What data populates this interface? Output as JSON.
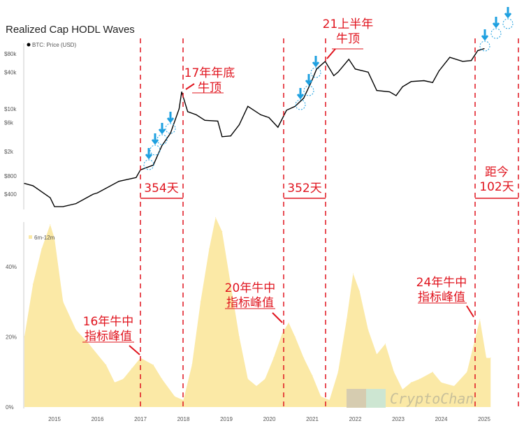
{
  "title": "Realized Cap HODL Waves",
  "chart_data": [
    {
      "type": "line",
      "title": "BTC: Price (USD)",
      "legend": "BTC: Price (USD)",
      "yscale": "log",
      "yticks": [
        "$80k",
        "$40k",
        "$10k",
        "$6k",
        "$2k",
        "$800",
        "$400"
      ],
      "ytick_values": [
        80000,
        40000,
        10000,
        6000,
        2000,
        800,
        400
      ],
      "x": [
        2014.3,
        2014.5,
        2014.9,
        2015.0,
        2015.2,
        2015.5,
        2015.9,
        2016.0,
        2016.5,
        2016.9,
        2017.0,
        2017.3,
        2017.5,
        2017.7,
        2017.9,
        2017.96,
        2018.1,
        2018.3,
        2018.5,
        2018.8,
        2018.9,
        2019.1,
        2019.3,
        2019.5,
        2019.8,
        2019.99,
        2020.2,
        2020.4,
        2020.6,
        2020.8,
        2020.99,
        2021.1,
        2021.3,
        2021.5,
        2021.6,
        2021.85,
        2022.0,
        2022.3,
        2022.5,
        2022.8,
        2022.95,
        2023.1,
        2023.3,
        2023.6,
        2023.8,
        2023.95,
        2024.2,
        2024.5,
        2024.7,
        2024.85,
        2025.0
      ],
      "values": [
        600,
        550,
        350,
        250,
        250,
        280,
        400,
        420,
        650,
        750,
        1000,
        1200,
        2500,
        4000,
        10000,
        19000,
        9000,
        8000,
        6500,
        6300,
        3500,
        3600,
        5500,
        11000,
        8000,
        7200,
        5000,
        9500,
        11000,
        15000,
        29000,
        45000,
        60000,
        35000,
        40000,
        65000,
        45000,
        40000,
        20000,
        19000,
        16500,
        23000,
        28000,
        29000,
        27000,
        42000,
        70000,
        60000,
        62000,
        90000,
        97000
      ]
    },
    {
      "type": "area",
      "legend": "6m-12m",
      "ylabel": "%",
      "yticks": [
        "40%",
        "20%",
        "0%"
      ],
      "ytick_values": [
        40,
        20,
        0
      ],
      "x": [
        2014.3,
        2014.5,
        2014.7,
        2014.9,
        2015.0,
        2015.2,
        2015.5,
        2015.8,
        2016.2,
        2016.4,
        2016.6,
        2016.8,
        2017.0,
        2017.3,
        2017.5,
        2017.8,
        2018.0,
        2018.2,
        2018.4,
        2018.6,
        2018.75,
        2018.9,
        2019.1,
        2019.3,
        2019.5,
        2019.7,
        2019.9,
        2020.1,
        2020.3,
        2020.45,
        2020.6,
        2020.8,
        2021.0,
        2021.2,
        2021.4,
        2021.6,
        2021.8,
        2021.95,
        2022.1,
        2022.3,
        2022.5,
        2022.7,
        2022.9,
        2023.1,
        2023.3,
        2023.5,
        2023.8,
        2024.0,
        2024.3,
        2024.6,
        2024.9,
        2025.05,
        2025.15
      ],
      "values": [
        20,
        35,
        45,
        52,
        48,
        30,
        22,
        18,
        12,
        7,
        8,
        11,
        14,
        12,
        8,
        3,
        2,
        12,
        30,
        45,
        54,
        50,
        35,
        20,
        8,
        6,
        8,
        14,
        21,
        24,
        20,
        14,
        9,
        3,
        2,
        10,
        25,
        38,
        33,
        22,
        15,
        18,
        10,
        5,
        7,
        8,
        10,
        7,
        6,
        10,
        25,
        14,
        14
      ]
    }
  ],
  "xticks": [
    "2015",
    "2016",
    "2017",
    "2018",
    "2019",
    "2020",
    "2021",
    "2022",
    "2023",
    "2024",
    "2025"
  ],
  "annotations": {
    "top2017": [
      "17年年底",
      "牛顶"
    ],
    "top2021": [
      "21上半年",
      "牛顶"
    ],
    "d1": "354天",
    "d2": "352天",
    "now": [
      "距今",
      "102天"
    ],
    "i16": [
      "16年牛中",
      "指标峰值"
    ],
    "i20": [
      "20年牛中",
      "指标峰值"
    ],
    "i24": [
      "24年牛中",
      "指标峰值"
    ]
  },
  "watermark": "CryptoChan",
  "colors": {
    "price": "#000000",
    "wave": "#fbe9a6",
    "annotation": "#e0141e",
    "marker": "#1ea0e0"
  }
}
